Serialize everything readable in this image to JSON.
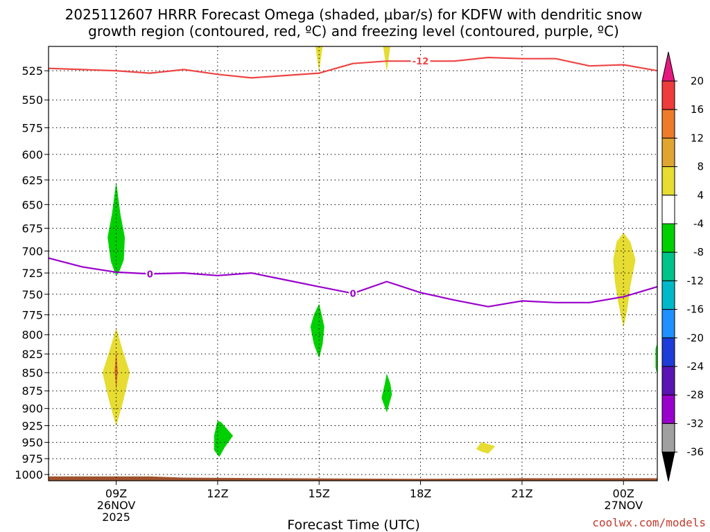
{
  "chart_data": {
    "type": "time-pressure cross-section",
    "title_line1": "2025112607 HRRR Forecast Omega (shaded, μbar/s) for KDFW with dendritic snow",
    "title_line2": "growth region (contoured, red, ºC) and freezing level (contoured, purple, ºC)",
    "xlabel": "Forecast Time (UTC)",
    "credit": "coolwx.com/models",
    "x_units": "hours since 00Z 26NOV2025",
    "xlim": [
      7,
      25
    ],
    "ylim_hPa": [
      1010,
      505
    ],
    "x_ticks": [
      {
        "x": 9,
        "label": "09Z",
        "sub1": "26NOV",
        "sub2": "2025"
      },
      {
        "x": 12,
        "label": "12Z",
        "sub1": "",
        "sub2": ""
      },
      {
        "x": 15,
        "label": "15Z",
        "sub1": "",
        "sub2": ""
      },
      {
        "x": 18,
        "label": "18Z",
        "sub1": "",
        "sub2": ""
      },
      {
        "x": 21,
        "label": "21Z",
        "sub1": "",
        "sub2": ""
      },
      {
        "x": 24,
        "label": "00Z",
        "sub1": "27NOV",
        "sub2": ""
      }
    ],
    "y_ticks": [
      "525",
      "550",
      "575",
      "600",
      "625",
      "650",
      "675",
      "700",
      "725",
      "750",
      "775",
      "800",
      "825",
      "850",
      "875",
      "900",
      "925",
      "950",
      "975",
      "1000"
    ],
    "series": [
      {
        "name": "dendritic snow growth region (-12 ºC)",
        "color": "#ee4444",
        "label": "-12",
        "label_at": {
          "x": 18,
          "p": 517
        },
        "points": [
          [
            7,
            523
          ],
          [
            8,
            524
          ],
          [
            9,
            525
          ],
          [
            10,
            527
          ],
          [
            11,
            524
          ],
          [
            12,
            528
          ],
          [
            13,
            531
          ],
          [
            14,
            529
          ],
          [
            15,
            527
          ],
          [
            16,
            519
          ],
          [
            17,
            517
          ],
          [
            18,
            517
          ],
          [
            19,
            517
          ],
          [
            20,
            514
          ],
          [
            21,
            515
          ],
          [
            22,
            515
          ],
          [
            23,
            521
          ],
          [
            24,
            520
          ],
          [
            25,
            525
          ]
        ]
      },
      {
        "name": "freezing level (0 ºC)",
        "color": "#9900cc",
        "label": "0",
        "label_at": [
          {
            "x": 10,
            "p": 726
          },
          {
            "x": 16,
            "p": 749
          }
        ],
        "points": [
          [
            7,
            708
          ],
          [
            8,
            718
          ],
          [
            9,
            724
          ],
          [
            10,
            726
          ],
          [
            11,
            725
          ],
          [
            12,
            728
          ],
          [
            13,
            725
          ],
          [
            14,
            733
          ],
          [
            15,
            741
          ],
          [
            16,
            749
          ],
          [
            17,
            735
          ],
          [
            18,
            748
          ],
          [
            19,
            757
          ],
          [
            20,
            765
          ],
          [
            21,
            758
          ],
          [
            22,
            760
          ],
          [
            23,
            760
          ],
          [
            24,
            753
          ],
          [
            25,
            741
          ]
        ]
      }
    ],
    "omega_regions": [
      {
        "value_range": "4 to 8",
        "color": "#e6dc32",
        "points": [
          [
            8.6,
            850
          ],
          [
            8.8,
            822
          ],
          [
            9.0,
            792
          ],
          [
            9.2,
            822
          ],
          [
            9.4,
            850
          ],
          [
            9.2,
            890
          ],
          [
            9.0,
            925
          ],
          [
            8.8,
            890
          ]
        ]
      },
      {
        "value_range": "12 to 16",
        "color": "#d96a2a",
        "points": [
          [
            8.96,
            848
          ],
          [
            9.0,
            822
          ],
          [
            9.04,
            848
          ],
          [
            9.0,
            872
          ]
        ]
      },
      {
        "value_range": "-8 to -4",
        "color": "#00d000",
        "points": [
          [
            8.75,
            685
          ],
          [
            8.88,
            660
          ],
          [
            9.0,
            628
          ],
          [
            9.12,
            660
          ],
          [
            9.25,
            685
          ],
          [
            9.22,
            710
          ],
          [
            9.1,
            722
          ],
          [
            9.0,
            728
          ],
          [
            8.85,
            712
          ]
        ]
      },
      {
        "value_range": "-8 to -4",
        "color": "#00d000",
        "points": [
          [
            14.75,
            790
          ],
          [
            14.85,
            775
          ],
          [
            15.0,
            762
          ],
          [
            15.15,
            790
          ],
          [
            15.1,
            812
          ],
          [
            15.0,
            830
          ],
          [
            14.85,
            812
          ]
        ]
      },
      {
        "value_range": "-8 to -4",
        "color": "#00d000",
        "points": [
          [
            17.15,
            880
          ],
          [
            17.0,
            905
          ],
          [
            16.85,
            885
          ],
          [
            16.95,
            865
          ],
          [
            17.0,
            852
          ],
          [
            17.1,
            865
          ]
        ]
      },
      {
        "value_range": "-8 to -4",
        "color": "#00d000",
        "points": [
          [
            11.9,
            940
          ],
          [
            12.0,
            918
          ],
          [
            12.1,
            920
          ],
          [
            12.45,
            940
          ],
          [
            12.2,
            958
          ],
          [
            12.05,
            972
          ],
          [
            11.9,
            962
          ]
        ]
      },
      {
        "value_range": "-8 to -4",
        "color": "#00d000",
        "points": [
          [
            24.95,
            818
          ],
          [
            25.0,
            812
          ],
          [
            25.0,
            852
          ],
          [
            24.95,
            843
          ]
        ]
      },
      {
        "value_range": "4 to 8",
        "color": "#e6dc32",
        "points": [
          [
            23.7,
            710
          ],
          [
            23.8,
            690
          ],
          [
            24.0,
            680
          ],
          [
            24.2,
            690
          ],
          [
            24.35,
            710
          ],
          [
            24.2,
            740
          ],
          [
            24.1,
            770
          ],
          [
            24.0,
            790
          ],
          [
            23.85,
            760
          ],
          [
            23.75,
            735
          ]
        ]
      },
      {
        "value_range": "4 to 8",
        "color": "#e6dc32",
        "points": [
          [
            19.65,
            960
          ],
          [
            19.8,
            950
          ],
          [
            20.2,
            956
          ],
          [
            20.0,
            967
          ],
          [
            19.8,
            964
          ]
        ]
      },
      {
        "value_range": "4 to 8",
        "color": "#e6dc32",
        "points": [
          [
            14.9,
            505
          ],
          [
            15.1,
            505
          ],
          [
            15.0,
            525
          ]
        ]
      },
      {
        "value_range": "4 to 8",
        "color": "#e6dc32",
        "points": [
          [
            16.9,
            505
          ],
          [
            17.1,
            505
          ],
          [
            17.0,
            525
          ]
        ]
      }
    ],
    "surface_fill": {
      "color": "#a0522d",
      "points": [
        [
          7,
          1010
        ],
        [
          7,
          1003
        ],
        [
          10,
          1003
        ],
        [
          11,
          1005
        ],
        [
          14,
          1006
        ],
        [
          18,
          1007
        ],
        [
          21,
          1006
        ],
        [
          25,
          1006
        ],
        [
          25,
          1010
        ]
      ]
    },
    "colorbar": {
      "label_values": [
        "20",
        "16",
        "12",
        "8",
        "4",
        "-4",
        "-8",
        "-12",
        "-16",
        "-20",
        "-24",
        "-28",
        "-32",
        "-36"
      ],
      "bands": [
        {
          "value_range": "above 20",
          "color": "#e6197f"
        },
        {
          "value_range": "16 to 20",
          "color": "#ee3b3b"
        },
        {
          "value_range": "12 to 16",
          "color": "#ee7b2a"
        },
        {
          "value_range": "8 to 12",
          "color": "#e0a530"
        },
        {
          "value_range": "4 to 8",
          "color": "#e6dc32"
        },
        {
          "value_range": "-4 to 4",
          "color": "#ffffff"
        },
        {
          "value_range": "-8 to -4",
          "color": "#00d000"
        },
        {
          "value_range": "-12 to -8",
          "color": "#00c38a"
        },
        {
          "value_range": "-16 to -12",
          "color": "#00b8c8"
        },
        {
          "value_range": "-20 to -16",
          "color": "#1e90ff"
        },
        {
          "value_range": "-24 to -20",
          "color": "#1e3cd7"
        },
        {
          "value_range": "-28 to -24",
          "color": "#5a14b4"
        },
        {
          "value_range": "-32 to -28",
          "color": "#9900cc"
        },
        {
          "value_range": "-36 to -32",
          "color": "#a0a0a0"
        },
        {
          "value_range": "below -36",
          "color": "#000000"
        }
      ]
    }
  }
}
